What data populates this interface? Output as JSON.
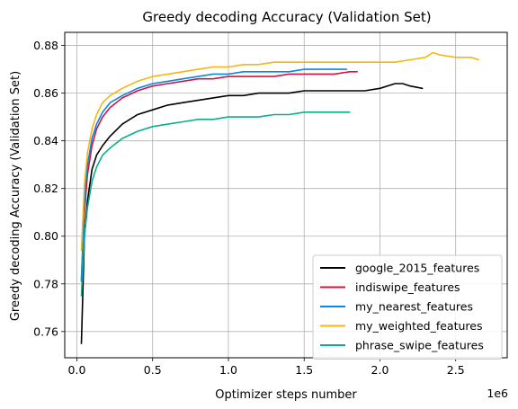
{
  "chart_data": {
    "type": "line",
    "title": "Greedy decoding Accuracy (Validation Set)",
    "xlabel": "Optimizer steps number",
    "ylabel": "Greedy decoding Accuracy (Validation Set)",
    "x_multiplier_label": "1e6",
    "xlim": [
      -80000,
      2840000
    ],
    "ylim": [
      0.749,
      0.8855
    ],
    "x_ticks": [
      0,
      500000,
      1000000,
      1500000,
      2000000,
      2500000
    ],
    "x_tick_labels": [
      "0.0",
      "0.5",
      "1.0",
      "1.5",
      "2.0",
      "2.5"
    ],
    "y_ticks": [
      0.76,
      0.78,
      0.8,
      0.82,
      0.84,
      0.86,
      0.88
    ],
    "y_tick_labels": [
      "0.76",
      "0.78",
      "0.80",
      "0.82",
      "0.84",
      "0.86",
      "0.88"
    ],
    "grid": true,
    "legend_position": "lower-right",
    "series": [
      {
        "name": "google_2015_features",
        "color": "#000000",
        "x": [
          30000,
          50000,
          70000,
          100000,
          130000,
          170000,
          220000,
          300000,
          400000,
          500000,
          600000,
          700000,
          800000,
          900000,
          1000000,
          1100000,
          1200000,
          1300000,
          1400000,
          1500000,
          1600000,
          1700000,
          1800000,
          1900000,
          2000000,
          2100000,
          2150000,
          2200000,
          2280000
        ],
        "values": [
          0.755,
          0.8,
          0.815,
          0.828,
          0.834,
          0.838,
          0.842,
          0.847,
          0.851,
          0.853,
          0.855,
          0.856,
          0.857,
          0.858,
          0.859,
          0.859,
          0.86,
          0.86,
          0.86,
          0.861,
          0.861,
          0.861,
          0.861,
          0.861,
          0.862,
          0.864,
          0.864,
          0.863,
          0.862
        ]
      },
      {
        "name": "indiswipe_features",
        "color": "#d6133f",
        "x": [
          30000,
          50000,
          70000,
          100000,
          130000,
          170000,
          220000,
          300000,
          400000,
          500000,
          600000,
          700000,
          800000,
          900000,
          1000000,
          1100000,
          1200000,
          1300000,
          1400000,
          1500000,
          1600000,
          1700000,
          1800000,
          1850000
        ],
        "values": [
          0.782,
          0.81,
          0.826,
          0.838,
          0.845,
          0.85,
          0.854,
          0.858,
          0.861,
          0.863,
          0.864,
          0.865,
          0.866,
          0.866,
          0.867,
          0.867,
          0.867,
          0.867,
          0.868,
          0.868,
          0.868,
          0.868,
          0.869,
          0.869
        ]
      },
      {
        "name": "my_nearest_features",
        "color": "#0a86e4",
        "x": [
          30000,
          50000,
          70000,
          100000,
          130000,
          170000,
          220000,
          300000,
          400000,
          500000,
          600000,
          700000,
          800000,
          900000,
          1000000,
          1100000,
          1200000,
          1300000,
          1400000,
          1500000,
          1600000,
          1700000,
          1780000
        ],
        "values": [
          0.781,
          0.815,
          0.83,
          0.841,
          0.847,
          0.852,
          0.856,
          0.859,
          0.862,
          0.864,
          0.865,
          0.866,
          0.867,
          0.868,
          0.868,
          0.869,
          0.869,
          0.869,
          0.869,
          0.87,
          0.87,
          0.87,
          0.87
        ]
      },
      {
        "name": "my_weighted_features",
        "color": "#f7b511",
        "x": [
          30000,
          50000,
          70000,
          100000,
          130000,
          170000,
          220000,
          300000,
          400000,
          500000,
          600000,
          700000,
          800000,
          900000,
          1000000,
          1100000,
          1200000,
          1300000,
          1400000,
          1500000,
          1600000,
          1700000,
          1800000,
          1900000,
          2000000,
          2100000,
          2200000,
          2300000,
          2350000,
          2400000,
          2500000,
          2600000,
          2650000
        ],
        "values": [
          0.794,
          0.822,
          0.835,
          0.845,
          0.851,
          0.856,
          0.859,
          0.862,
          0.865,
          0.867,
          0.868,
          0.869,
          0.87,
          0.871,
          0.871,
          0.872,
          0.872,
          0.873,
          0.873,
          0.873,
          0.873,
          0.873,
          0.873,
          0.873,
          0.873,
          0.873,
          0.874,
          0.875,
          0.877,
          0.876,
          0.875,
          0.875,
          0.874
        ]
      },
      {
        "name": "phrase_swipe_features",
        "color": "#08b08a",
        "x": [
          30000,
          50000,
          70000,
          100000,
          130000,
          170000,
          220000,
          300000,
          400000,
          500000,
          600000,
          700000,
          800000,
          900000,
          1000000,
          1100000,
          1200000,
          1300000,
          1400000,
          1500000,
          1600000,
          1700000,
          1800000
        ],
        "values": [
          0.775,
          0.8,
          0.812,
          0.823,
          0.829,
          0.834,
          0.837,
          0.841,
          0.844,
          0.846,
          0.847,
          0.848,
          0.849,
          0.849,
          0.85,
          0.85,
          0.85,
          0.851,
          0.851,
          0.852,
          0.852,
          0.852,
          0.852
        ]
      }
    ]
  }
}
